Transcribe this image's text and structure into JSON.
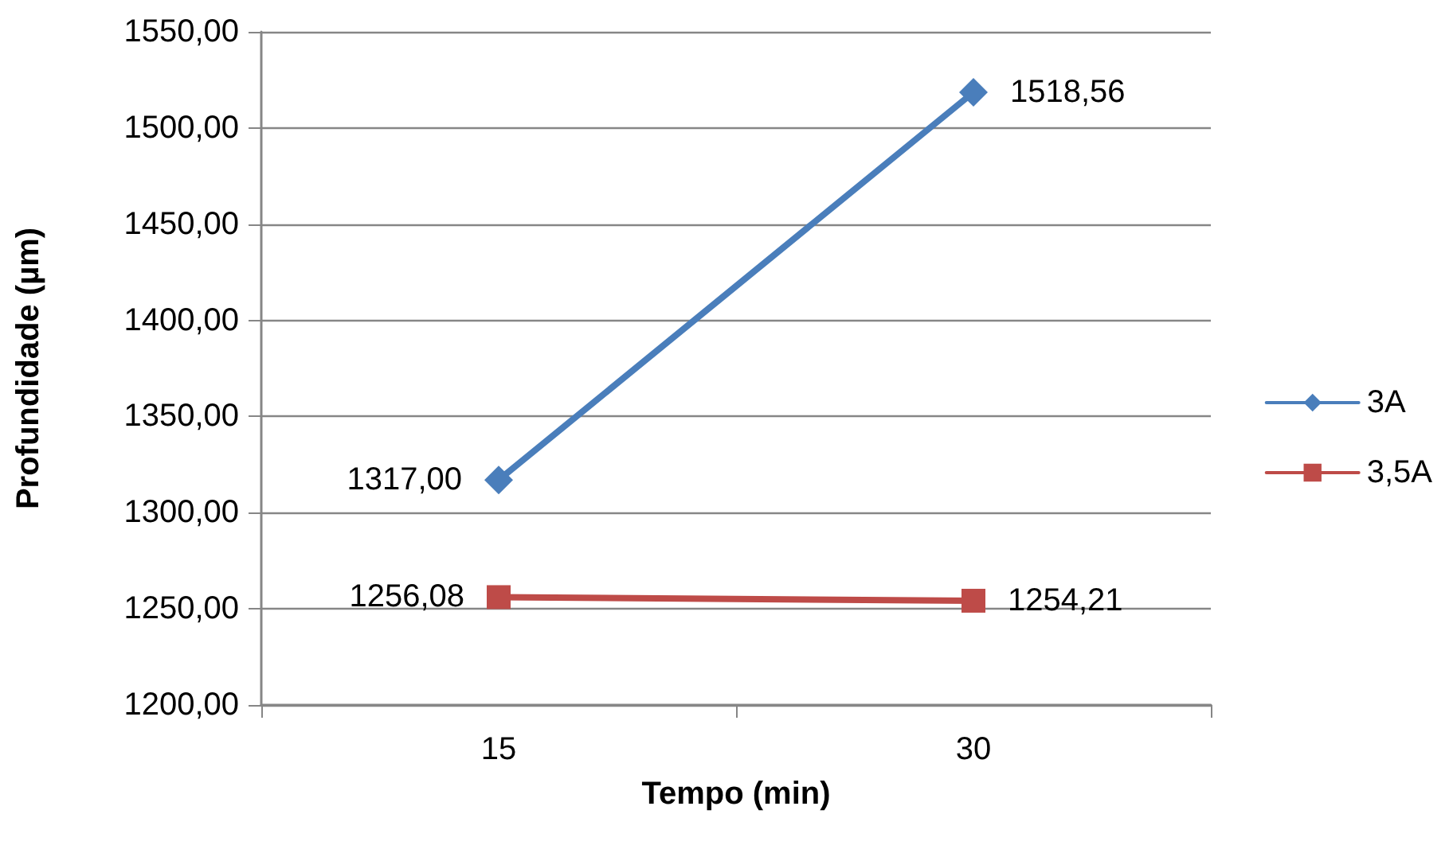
{
  "chart_data": {
    "type": "line",
    "xlabel": "Tempo (min)",
    "ylabel": "Profundidade (µm)",
    "categories": [
      "15",
      "30"
    ],
    "series": [
      {
        "name": "3A",
        "color": "#4a7ebb",
        "marker": "diamond",
        "values": [
          1317.0,
          1518.56
        ],
        "value_labels": [
          "1317,00",
          "1518,56"
        ]
      },
      {
        "name": "3,5A",
        "color": "#be4b48",
        "marker": "square",
        "values": [
          1256.08,
          1254.21
        ],
        "value_labels": [
          "1256,08",
          "1254,21"
        ]
      }
    ],
    "ylim": [
      1200,
      1550
    ],
    "yticks": [
      {
        "value": 1200,
        "label": "1200,00"
      },
      {
        "value": 1250,
        "label": "1250,00"
      },
      {
        "value": 1300,
        "label": "1300,00"
      },
      {
        "value": 1350,
        "label": "1350,00"
      },
      {
        "value": 1400,
        "label": "1400,00"
      },
      {
        "value": 1450,
        "label": "1450,00"
      },
      {
        "value": 1500,
        "label": "1500,00"
      },
      {
        "value": 1550,
        "label": "1550,00"
      }
    ],
    "grid": "y",
    "legend": "right"
  }
}
